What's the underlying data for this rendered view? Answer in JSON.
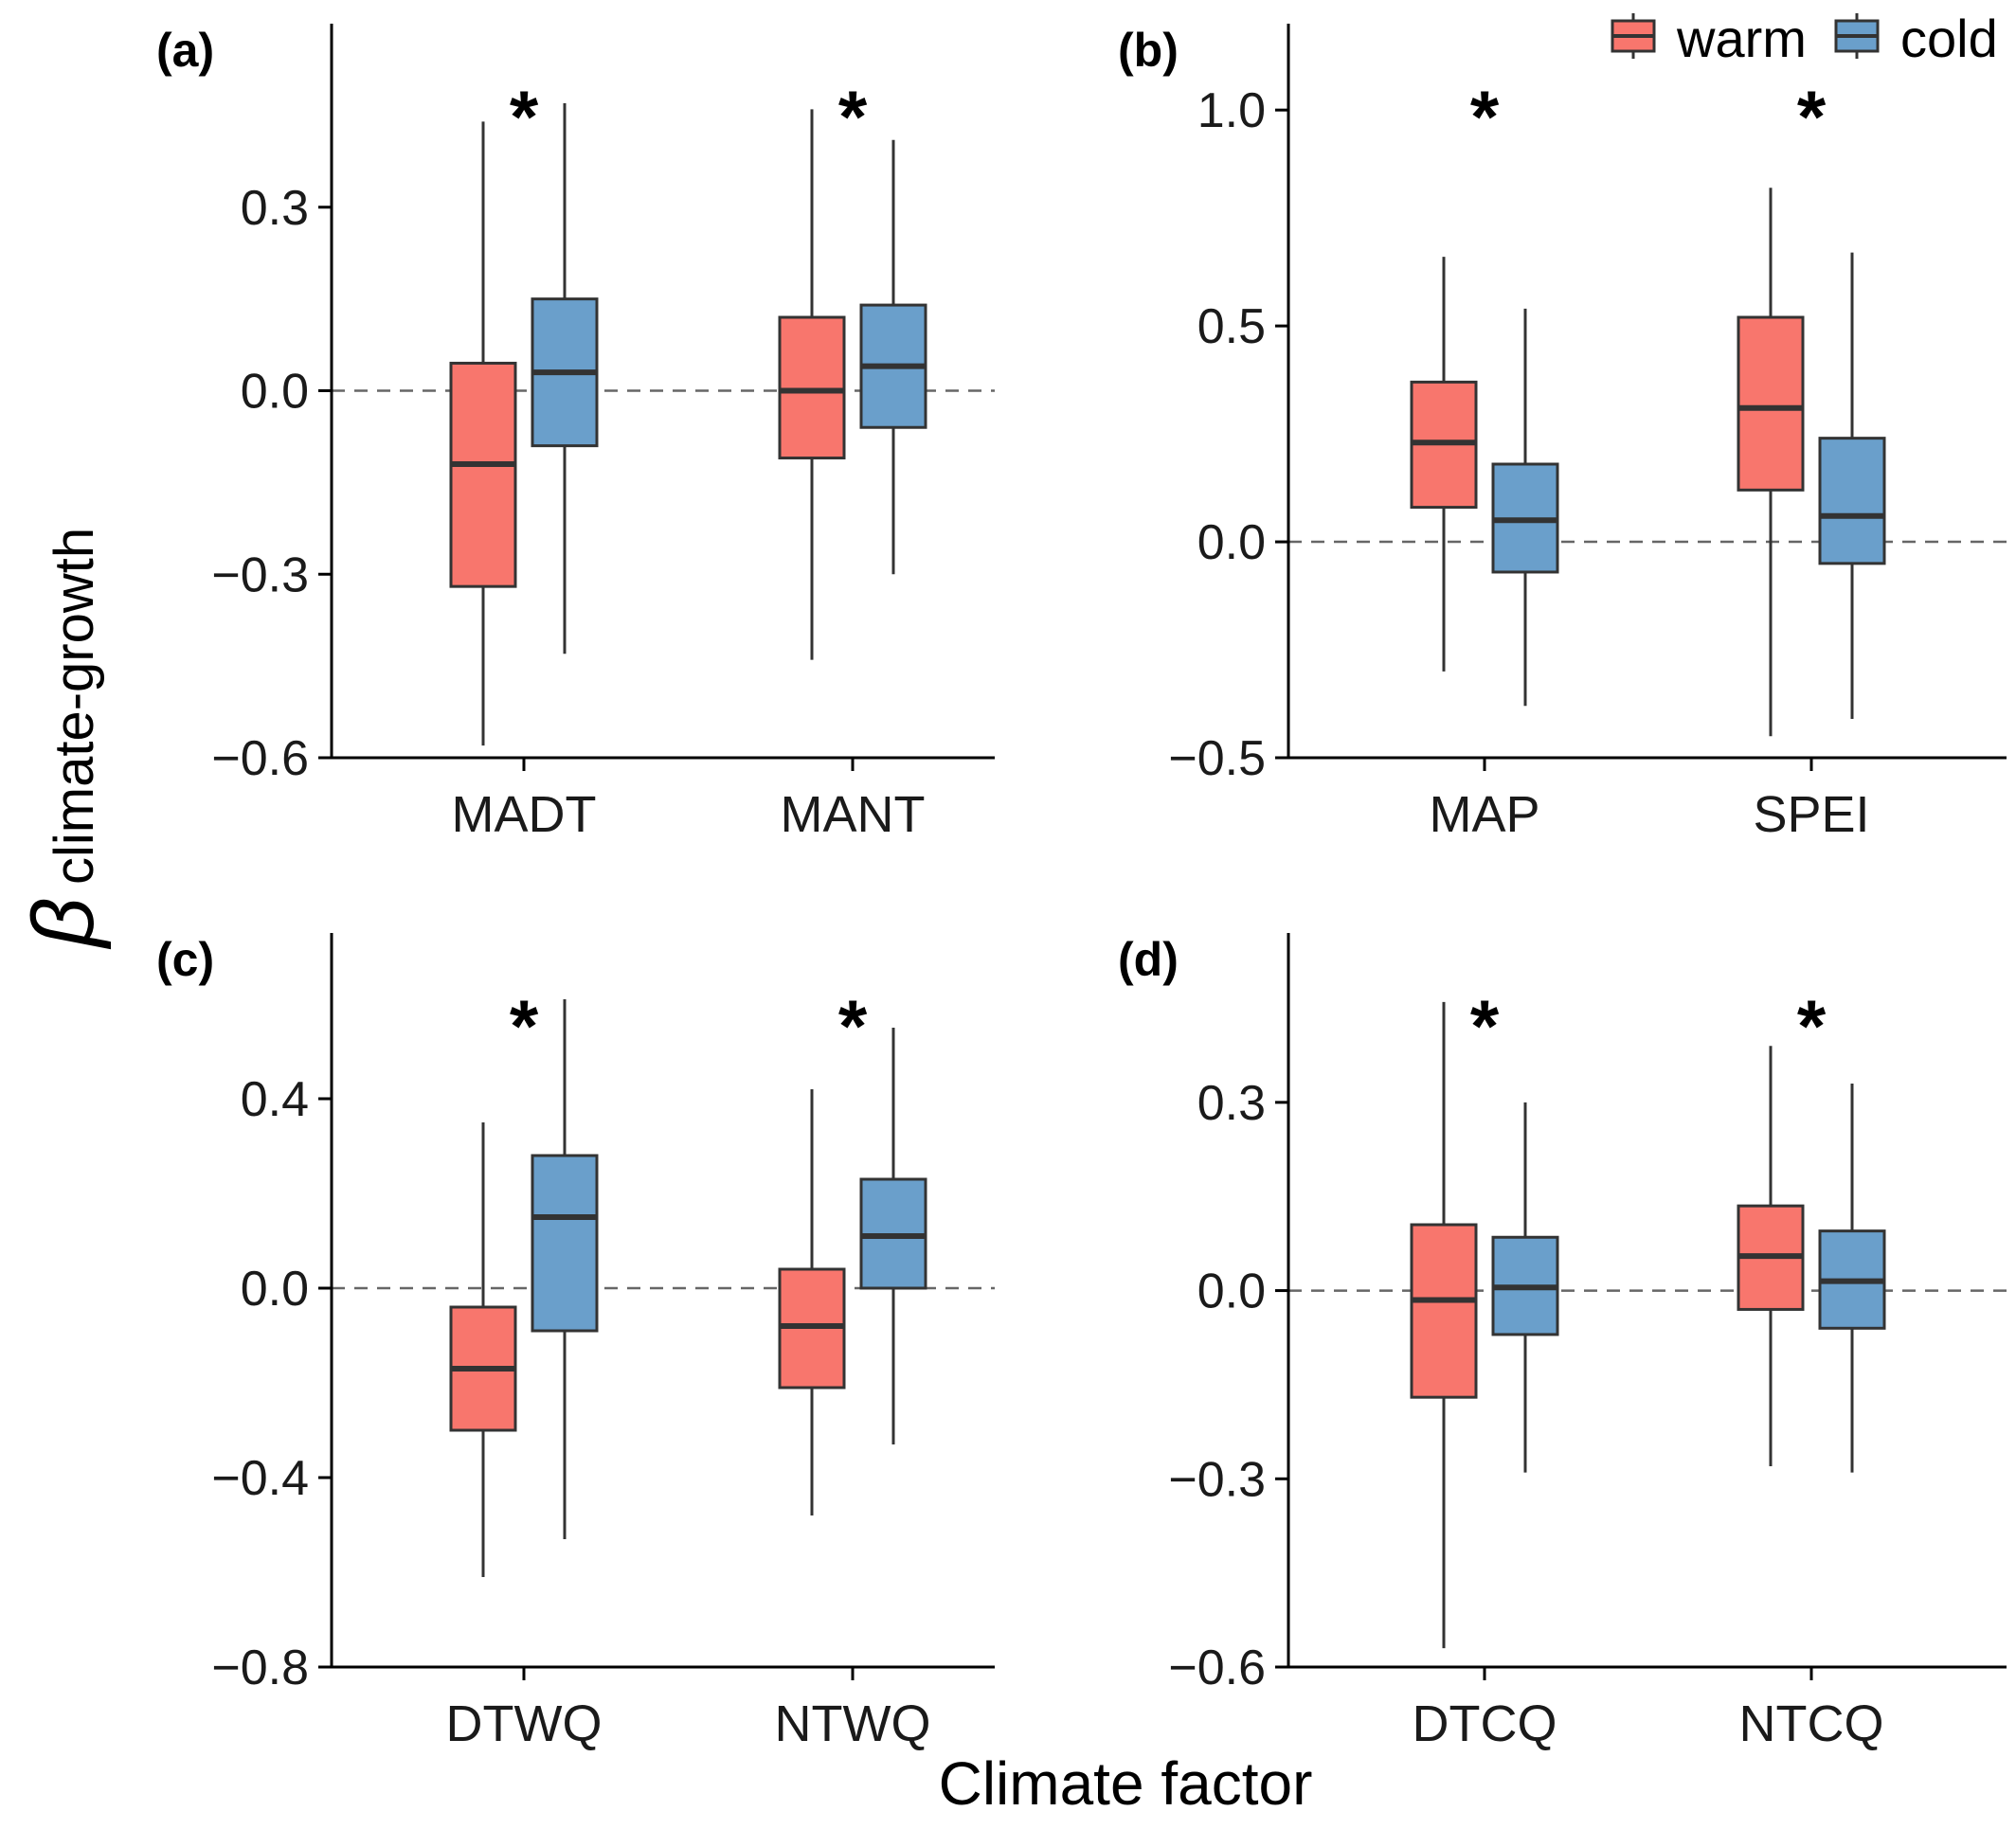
{
  "figure": {
    "ylabel_symbol": "β",
    "ylabel_subscript": "climate-growth",
    "xlabel": "Climate factor"
  },
  "legend": {
    "position": "top-right",
    "items": [
      {
        "name": "warm",
        "color": "#F8766D"
      },
      {
        "name": "cold",
        "color": "#6A9FCB"
      }
    ]
  },
  "colors": {
    "warm": "#F8766D",
    "cold": "#6A9FCB",
    "box_stroke": "#333333",
    "reference_line": "#666666"
  },
  "chart_data": [
    {
      "type": "box",
      "panel": "(a)",
      "ylim": [
        -0.6,
        0.6
      ],
      "yticks": [
        -0.6,
        -0.3,
        0.0,
        0.3
      ],
      "ytick_labels": [
        "−0.6",
        "−0.3",
        "0.0",
        "0.3"
      ],
      "categories": [
        "MADT",
        "MANT"
      ],
      "significance": [
        "*",
        "*"
      ],
      "reference_line": 0,
      "series": [
        {
          "name": "warm",
          "boxes": [
            {
              "min": -0.58,
              "q1": -0.32,
              "median": -0.12,
              "q3": 0.045,
              "max": 0.44
            },
            {
              "min": -0.44,
              "q1": -0.11,
              "median": 0.0,
              "q3": 0.12,
              "max": 0.46
            }
          ]
        },
        {
          "name": "cold",
          "boxes": [
            {
              "min": -0.43,
              "q1": -0.09,
              "median": 0.03,
              "q3": 0.15,
              "max": 0.47
            },
            {
              "min": -0.3,
              "q1": -0.06,
              "median": 0.04,
              "q3": 0.14,
              "max": 0.41
            }
          ]
        }
      ]
    },
    {
      "type": "box",
      "panel": "(b)",
      "ylim": [
        -0.5,
        1.2
      ],
      "yticks": [
        -0.5,
        0.0,
        0.5,
        1.0
      ],
      "ytick_labels": [
        "−0.5",
        "0.0",
        "0.5",
        "1.0"
      ],
      "categories": [
        "MAP",
        "SPEI"
      ],
      "significance": [
        "*",
        "*"
      ],
      "reference_line": 0,
      "series": [
        {
          "name": "warm",
          "boxes": [
            {
              "min": -0.3,
              "q1": 0.08,
              "median": 0.23,
              "q3": 0.37,
              "max": 0.66
            },
            {
              "min": -0.45,
              "q1": 0.12,
              "median": 0.31,
              "q3": 0.52,
              "max": 0.82
            }
          ]
        },
        {
          "name": "cold",
          "boxes": [
            {
              "min": -0.38,
              "q1": -0.07,
              "median": 0.05,
              "q3": 0.18,
              "max": 0.54
            },
            {
              "min": -0.41,
              "q1": -0.05,
              "median": 0.06,
              "q3": 0.24,
              "max": 0.67
            }
          ]
        }
      ]
    },
    {
      "type": "box",
      "panel": "(c)",
      "ylim": [
        -0.8,
        0.75
      ],
      "yticks": [
        -0.8,
        -0.4,
        0.0,
        0.4
      ],
      "ytick_labels": [
        "−0.8",
        "−0.4",
        "0.0",
        "0.4"
      ],
      "categories": [
        "DTWQ",
        "NTWQ"
      ],
      "significance": [
        "*",
        "*"
      ],
      "reference_line": 0,
      "series": [
        {
          "name": "warm",
          "boxes": [
            {
              "min": -0.61,
              "q1": -0.3,
              "median": -0.17,
              "q3": -0.04,
              "max": 0.35
            },
            {
              "min": -0.48,
              "q1": -0.21,
              "median": -0.08,
              "q3": 0.04,
              "max": 0.42
            }
          ]
        },
        {
          "name": "cold",
          "boxes": [
            {
              "min": -0.53,
              "q1": -0.09,
              "median": 0.15,
              "q3": 0.28,
              "max": 0.61
            },
            {
              "min": -0.33,
              "q1": 0.0,
              "median": 0.11,
              "q3": 0.23,
              "max": 0.55
            }
          ]
        }
      ]
    },
    {
      "type": "box",
      "panel": "(d)",
      "ylim": [
        -0.6,
        0.57
      ],
      "yticks": [
        -0.6,
        -0.3,
        0.0,
        0.3
      ],
      "ytick_labels": [
        "−0.6",
        "−0.3",
        "0.0",
        "0.3"
      ],
      "categories": [
        "DTCQ",
        "NTCQ"
      ],
      "significance": [
        "*",
        "*"
      ],
      "reference_line": 0,
      "series": [
        {
          "name": "warm",
          "boxes": [
            {
              "min": -0.57,
              "q1": -0.17,
              "median": -0.015,
              "q3": 0.105,
              "max": 0.46
            },
            {
              "min": -0.28,
              "q1": -0.03,
              "median": 0.055,
              "q3": 0.135,
              "max": 0.39
            }
          ]
        },
        {
          "name": "cold",
          "boxes": [
            {
              "min": -0.29,
              "q1": -0.07,
              "median": 0.005,
              "q3": 0.085,
              "max": 0.3
            },
            {
              "min": -0.29,
              "q1": -0.06,
              "median": 0.015,
              "q3": 0.095,
              "max": 0.33
            }
          ]
        }
      ]
    }
  ]
}
